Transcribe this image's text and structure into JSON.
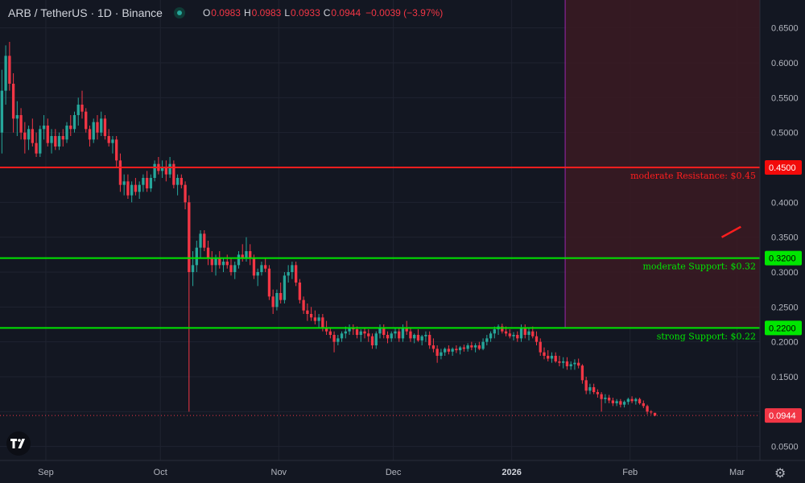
{
  "header": {
    "symbol": "ARB / TetherUS · 1D · Binance",
    "open_label": "O",
    "open": "0.0983",
    "high_label": "H",
    "high": "0.0983",
    "low_label": "L",
    "low": "0.0933",
    "close_label": "C",
    "close": "0.0944",
    "change": "−0.0039 (−3.97%)"
  },
  "colors": {
    "background": "#131722",
    "up": "#26a69a",
    "down": "#f23645",
    "resistance": "#ff1e1e",
    "support": "#00e600",
    "zone": "#3b1a22",
    "marker_line": "#9c27b0"
  },
  "chart_data": {
    "type": "candlestick",
    "title": "",
    "xlabel": "",
    "ylabel": "",
    "ylim": [
      0.03,
      0.69
    ],
    "x_ticks": [
      {
        "label": "Sep",
        "date": "2025-09-01"
      },
      {
        "label": "Oct",
        "date": "2025-10-01"
      },
      {
        "label": "Nov",
        "date": "2025-11-01"
      },
      {
        "label": "Dec",
        "date": "2025-12-01"
      },
      {
        "label": "2026",
        "date": "2026-01-01"
      },
      {
        "label": "Feb",
        "date": "2026-02-01"
      },
      {
        "label": "Mar",
        "date": "2026-03-01"
      }
    ],
    "y_ticks": [
      0.65,
      0.6,
      0.55,
      0.5,
      0.45,
      0.4,
      0.35,
      0.3,
      0.25,
      0.2,
      0.15,
      0.1,
      0.05
    ],
    "y_tick_labels": [
      "0.6500",
      "0.6000",
      "0.5500",
      "0.5000",
      "0.4500",
      "0.4000",
      "0.3500",
      "0.3000",
      "0.2500",
      "0.2000",
      "0.1500",
      "0.1000",
      "0.0500"
    ],
    "grid": true,
    "series_dates": {
      "start": "2025-08-20",
      "interval": "1D"
    },
    "ohlc": [
      [
        0.5,
        0.59,
        0.47,
        0.56
      ],
      [
        0.56,
        0.625,
        0.54,
        0.61
      ],
      [
        0.61,
        0.63,
        0.56,
        0.57
      ],
      [
        0.57,
        0.585,
        0.5,
        0.52
      ],
      [
        0.52,
        0.545,
        0.495,
        0.525
      ],
      [
        0.525,
        0.535,
        0.49,
        0.5
      ],
      [
        0.5,
        0.515,
        0.47,
        0.49
      ],
      [
        0.49,
        0.51,
        0.475,
        0.505
      ],
      [
        0.505,
        0.52,
        0.48,
        0.485
      ],
      [
        0.485,
        0.5,
        0.465,
        0.47
      ],
      [
        0.47,
        0.51,
        0.465,
        0.505
      ],
      [
        0.505,
        0.525,
        0.49,
        0.51
      ],
      [
        0.51,
        0.52,
        0.48,
        0.485
      ],
      [
        0.485,
        0.505,
        0.47,
        0.495
      ],
      [
        0.495,
        0.505,
        0.475,
        0.48
      ],
      [
        0.48,
        0.5,
        0.475,
        0.495
      ],
      [
        0.495,
        0.505,
        0.48,
        0.49
      ],
      [
        0.49,
        0.515,
        0.485,
        0.51
      ],
      [
        0.51,
        0.525,
        0.495,
        0.505
      ],
      [
        0.505,
        0.53,
        0.5,
        0.525
      ],
      [
        0.525,
        0.55,
        0.51,
        0.54
      ],
      [
        0.54,
        0.56,
        0.52,
        0.53
      ],
      [
        0.53,
        0.535,
        0.5,
        0.505
      ],
      [
        0.505,
        0.51,
        0.48,
        0.49
      ],
      [
        0.49,
        0.52,
        0.485,
        0.515
      ],
      [
        0.515,
        0.525,
        0.49,
        0.5
      ],
      [
        0.5,
        0.53,
        0.495,
        0.52
      ],
      [
        0.52,
        0.525,
        0.49,
        0.495
      ],
      [
        0.495,
        0.505,
        0.48,
        0.485
      ],
      [
        0.485,
        0.495,
        0.47,
        0.49
      ],
      [
        0.49,
        0.495,
        0.45,
        0.46
      ],
      [
        0.46,
        0.47,
        0.415,
        0.425
      ],
      [
        0.425,
        0.44,
        0.41,
        0.43
      ],
      [
        0.43,
        0.44,
        0.405,
        0.41
      ],
      [
        0.41,
        0.43,
        0.4,
        0.425
      ],
      [
        0.425,
        0.435,
        0.41,
        0.415
      ],
      [
        0.415,
        0.43,
        0.405,
        0.425
      ],
      [
        0.425,
        0.44,
        0.415,
        0.435
      ],
      [
        0.435,
        0.445,
        0.415,
        0.42
      ],
      [
        0.42,
        0.44,
        0.415,
        0.435
      ],
      [
        0.435,
        0.46,
        0.43,
        0.455
      ],
      [
        0.455,
        0.465,
        0.44,
        0.445
      ],
      [
        0.445,
        0.46,
        0.435,
        0.45
      ],
      [
        0.45,
        0.46,
        0.43,
        0.44
      ],
      [
        0.44,
        0.465,
        0.435,
        0.455
      ],
      [
        0.455,
        0.46,
        0.42,
        0.425
      ],
      [
        0.425,
        0.44,
        0.41,
        0.435
      ],
      [
        0.435,
        0.44,
        0.42,
        0.425
      ],
      [
        0.425,
        0.43,
        0.39,
        0.4
      ],
      [
        0.4,
        0.41,
        0.1,
        0.3
      ],
      [
        0.3,
        0.33,
        0.28,
        0.31
      ],
      [
        0.31,
        0.345,
        0.3,
        0.335
      ],
      [
        0.335,
        0.36,
        0.32,
        0.355
      ],
      [
        0.355,
        0.36,
        0.33,
        0.335
      ],
      [
        0.335,
        0.345,
        0.31,
        0.32
      ],
      [
        0.32,
        0.33,
        0.3,
        0.31
      ],
      [
        0.31,
        0.325,
        0.295,
        0.32
      ],
      [
        0.32,
        0.33,
        0.305,
        0.31
      ],
      [
        0.31,
        0.32,
        0.3,
        0.315
      ],
      [
        0.315,
        0.325,
        0.305,
        0.31
      ],
      [
        0.31,
        0.32,
        0.295,
        0.3
      ],
      [
        0.3,
        0.315,
        0.29,
        0.31
      ],
      [
        0.31,
        0.33,
        0.305,
        0.325
      ],
      [
        0.325,
        0.34,
        0.315,
        0.32
      ],
      [
        0.32,
        0.35,
        0.315,
        0.33
      ],
      [
        0.33,
        0.34,
        0.31,
        0.32
      ],
      [
        0.32,
        0.325,
        0.29,
        0.295
      ],
      [
        0.295,
        0.305,
        0.28,
        0.3
      ],
      [
        0.3,
        0.315,
        0.295,
        0.31
      ],
      [
        0.31,
        0.32,
        0.3,
        0.305
      ],
      [
        0.305,
        0.31,
        0.26,
        0.265
      ],
      [
        0.265,
        0.275,
        0.24,
        0.25
      ],
      [
        0.25,
        0.275,
        0.245,
        0.27
      ],
      [
        0.27,
        0.285,
        0.255,
        0.26
      ],
      [
        0.26,
        0.3,
        0.255,
        0.295
      ],
      [
        0.295,
        0.31,
        0.285,
        0.3
      ],
      [
        0.3,
        0.315,
        0.29,
        0.31
      ],
      [
        0.31,
        0.315,
        0.28,
        0.285
      ],
      [
        0.285,
        0.29,
        0.255,
        0.26
      ],
      [
        0.26,
        0.265,
        0.24,
        0.245
      ],
      [
        0.245,
        0.255,
        0.23,
        0.24
      ],
      [
        0.24,
        0.25,
        0.23,
        0.235
      ],
      [
        0.235,
        0.245,
        0.225,
        0.23
      ],
      [
        0.23,
        0.24,
        0.22,
        0.235
      ],
      [
        0.235,
        0.24,
        0.215,
        0.22
      ],
      [
        0.22,
        0.23,
        0.21,
        0.215
      ],
      [
        0.215,
        0.22,
        0.205,
        0.21
      ],
      [
        0.21,
        0.215,
        0.185,
        0.2
      ],
      [
        0.2,
        0.21,
        0.195,
        0.205
      ],
      [
        0.205,
        0.215,
        0.2,
        0.212
      ],
      [
        0.212,
        0.222,
        0.205,
        0.215
      ],
      [
        0.215,
        0.225,
        0.21,
        0.22
      ],
      [
        0.22,
        0.225,
        0.21,
        0.218
      ],
      [
        0.218,
        0.222,
        0.205,
        0.21
      ],
      [
        0.21,
        0.218,
        0.2,
        0.215
      ],
      [
        0.215,
        0.22,
        0.205,
        0.212
      ],
      [
        0.212,
        0.218,
        0.2,
        0.208
      ],
      [
        0.208,
        0.212,
        0.19,
        0.195
      ],
      [
        0.195,
        0.215,
        0.19,
        0.212
      ],
      [
        0.212,
        0.225,
        0.205,
        0.22
      ],
      [
        0.22,
        0.225,
        0.205,
        0.21
      ],
      [
        0.21,
        0.215,
        0.198,
        0.205
      ],
      [
        0.205,
        0.215,
        0.2,
        0.212
      ],
      [
        0.212,
        0.22,
        0.205,
        0.215
      ],
      [
        0.215,
        0.22,
        0.2,
        0.205
      ],
      [
        0.205,
        0.225,
        0.2,
        0.22
      ],
      [
        0.22,
        0.23,
        0.21,
        0.215
      ],
      [
        0.215,
        0.22,
        0.2,
        0.205
      ],
      [
        0.205,
        0.212,
        0.198,
        0.21
      ],
      [
        0.21,
        0.218,
        0.2,
        0.202
      ],
      [
        0.202,
        0.21,
        0.195,
        0.208
      ],
      [
        0.208,
        0.215,
        0.2,
        0.21
      ],
      [
        0.21,
        0.215,
        0.19,
        0.195
      ],
      [
        0.195,
        0.205,
        0.185,
        0.19
      ],
      [
        0.19,
        0.195,
        0.17,
        0.18
      ],
      [
        0.18,
        0.19,
        0.175,
        0.185
      ],
      [
        0.185,
        0.192,
        0.18,
        0.19
      ],
      [
        0.19,
        0.195,
        0.182,
        0.186
      ],
      [
        0.186,
        0.192,
        0.18,
        0.19
      ],
      [
        0.19,
        0.195,
        0.184,
        0.188
      ],
      [
        0.188,
        0.194,
        0.182,
        0.192
      ],
      [
        0.192,
        0.196,
        0.186,
        0.19
      ],
      [
        0.19,
        0.198,
        0.186,
        0.195
      ],
      [
        0.195,
        0.2,
        0.188,
        0.192
      ],
      [
        0.192,
        0.198,
        0.185,
        0.195
      ],
      [
        0.195,
        0.2,
        0.188,
        0.19
      ],
      [
        0.19,
        0.205,
        0.188,
        0.2
      ],
      [
        0.2,
        0.21,
        0.195,
        0.205
      ],
      [
        0.205,
        0.215,
        0.2,
        0.212
      ],
      [
        0.212,
        0.222,
        0.205,
        0.218
      ],
      [
        0.218,
        0.225,
        0.21,
        0.222
      ],
      [
        0.222,
        0.226,
        0.212,
        0.215
      ],
      [
        0.215,
        0.222,
        0.208,
        0.212
      ],
      [
        0.212,
        0.218,
        0.205,
        0.208
      ],
      [
        0.208,
        0.214,
        0.202,
        0.21
      ],
      [
        0.21,
        0.215,
        0.2,
        0.205
      ],
      [
        0.205,
        0.225,
        0.2,
        0.22
      ],
      [
        0.22,
        0.225,
        0.205,
        0.21
      ],
      [
        0.21,
        0.22,
        0.202,
        0.215
      ],
      [
        0.215,
        0.222,
        0.205,
        0.208
      ],
      [
        0.208,
        0.215,
        0.195,
        0.2
      ],
      [
        0.2,
        0.205,
        0.18,
        0.185
      ],
      [
        0.185,
        0.192,
        0.175,
        0.18
      ],
      [
        0.18,
        0.188,
        0.172,
        0.176
      ],
      [
        0.176,
        0.185,
        0.17,
        0.18
      ],
      [
        0.18,
        0.185,
        0.17,
        0.172
      ],
      [
        0.172,
        0.18,
        0.165,
        0.17
      ],
      [
        0.17,
        0.178,
        0.162,
        0.172
      ],
      [
        0.172,
        0.178,
        0.16,
        0.165
      ],
      [
        0.165,
        0.172,
        0.16,
        0.168
      ],
      [
        0.168,
        0.175,
        0.16,
        0.17
      ],
      [
        0.17,
        0.176,
        0.162,
        0.166
      ],
      [
        0.166,
        0.168,
        0.14,
        0.145
      ],
      [
        0.145,
        0.15,
        0.125,
        0.13
      ],
      [
        0.13,
        0.14,
        0.125,
        0.135
      ],
      [
        0.135,
        0.14,
        0.125,
        0.128
      ],
      [
        0.128,
        0.132,
        0.12,
        0.125
      ],
      [
        0.125,
        0.128,
        0.1,
        0.118
      ],
      [
        0.118,
        0.125,
        0.112,
        0.12
      ],
      [
        0.12,
        0.124,
        0.112,
        0.116
      ],
      [
        0.116,
        0.12,
        0.108,
        0.112
      ],
      [
        0.112,
        0.118,
        0.108,
        0.115
      ],
      [
        0.115,
        0.118,
        0.106,
        0.11
      ],
      [
        0.11,
        0.116,
        0.106,
        0.114
      ],
      [
        0.114,
        0.12,
        0.11,
        0.118
      ],
      [
        0.118,
        0.122,
        0.112,
        0.115
      ],
      [
        0.115,
        0.12,
        0.11,
        0.118
      ],
      [
        0.118,
        0.12,
        0.11,
        0.112
      ],
      [
        0.112,
        0.116,
        0.105,
        0.108
      ],
      [
        0.108,
        0.11,
        0.096,
        0.1
      ],
      [
        0.1,
        0.102,
        0.096,
        0.099
      ],
      [
        0.0983,
        0.0983,
        0.0933,
        0.0944
      ]
    ],
    "horizontal_levels": [
      {
        "price": 0.45,
        "label": "0.4500",
        "annotation": "moderate Resistance: $0.45",
        "color": "#ff1e1e"
      },
      {
        "price": 0.32,
        "label": "0.3200",
        "annotation": "moderate Support: $0.32",
        "color": "#00e600"
      },
      {
        "price": 0.22,
        "label": "0.2200",
        "annotation": "strong Support: $0.22",
        "color": "#00e600"
      }
    ],
    "last_price": {
      "price": 0.0944,
      "label": "0.0944"
    },
    "shaded_zone": {
      "start_date": "2026-01-15",
      "price_top": 0.69,
      "price_bottom": 0.22
    },
    "vertical_marker": {
      "date": "2026-01-15"
    },
    "trend_segment": {
      "from": {
        "date": "2026-02-25",
        "price": 0.35
      },
      "to": {
        "date": "2026-03-02",
        "price": 0.365
      }
    }
  }
}
